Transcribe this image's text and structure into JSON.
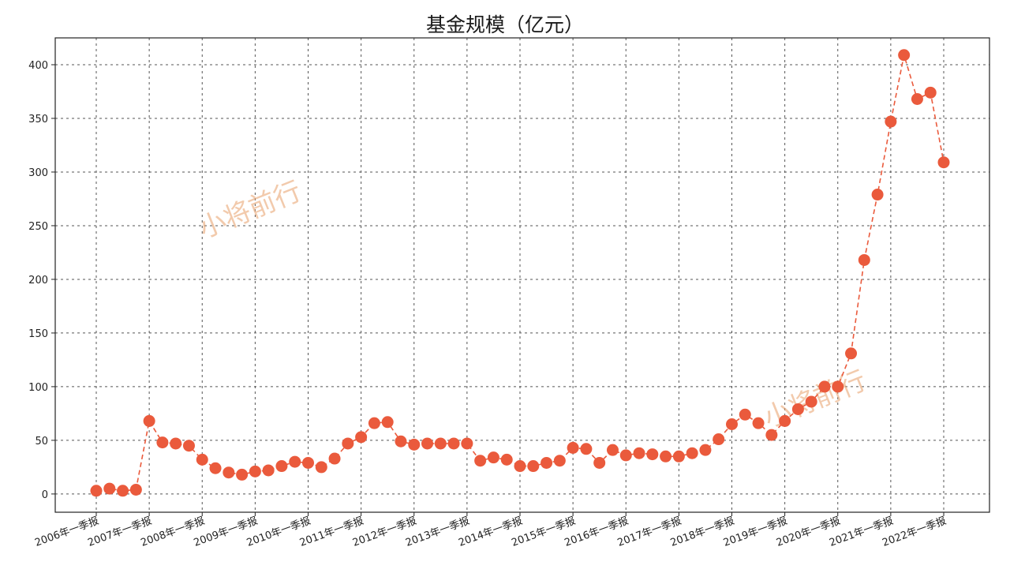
{
  "chart_data": {
    "type": "line",
    "title": "基金规模（亿元）",
    "xlabel": "",
    "ylabel": "",
    "ylim": [
      -17,
      425
    ],
    "yticks": [
      0,
      50,
      100,
      150,
      200,
      250,
      300,
      350,
      400
    ],
    "grid": true,
    "x_tick_labels": [
      "2006年一季报",
      "2007年一季报",
      "2008年一季报",
      "2009年一季报",
      "2010年一季报",
      "2011年一季报",
      "2012年一季报",
      "2013年一季报",
      "2014年一季报",
      "2015年一季报",
      "2016年一季报",
      "2017年一季报",
      "2018年一季报",
      "2019年一季报",
      "2020年一季报",
      "2021年一季报",
      "2022年一季报"
    ],
    "series": [
      {
        "color": "#ea5a3c",
        "line_style": "dashed",
        "marker": "circle",
        "values": [
          3,
          5,
          3,
          4,
          68,
          48,
          47,
          45,
          32,
          24,
          20,
          18,
          21,
          22,
          26,
          30,
          29,
          25,
          33,
          47,
          53,
          66,
          67,
          49,
          46,
          47,
          47,
          47,
          47,
          31,
          34,
          32,
          26,
          26,
          29,
          31,
          43,
          42,
          29,
          41,
          36,
          38,
          37,
          35,
          35,
          38,
          41,
          51,
          65,
          74,
          66,
          55,
          68,
          79,
          86,
          100,
          100,
          131,
          218,
          279,
          347,
          409,
          368,
          374,
          309
        ]
      }
    ]
  },
  "watermarks": [
    "小将前行",
    "小将前行"
  ]
}
